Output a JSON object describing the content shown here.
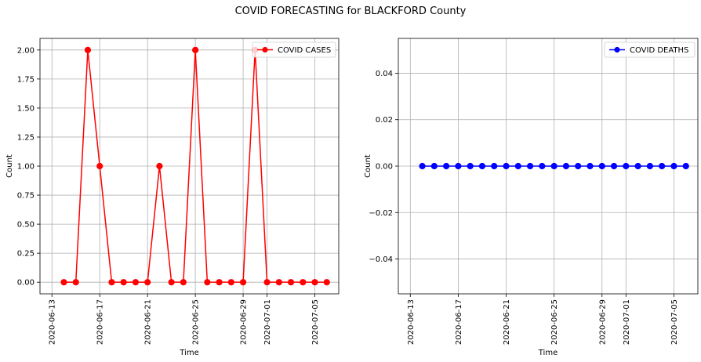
{
  "suptitle": "COVID FORECASTING for BLACKFORD County",
  "chart_data": [
    {
      "type": "line",
      "xlabel": "Time",
      "ylabel": "Count",
      "x": [
        "2020-06-14",
        "2020-06-15",
        "2020-06-16",
        "2020-06-17",
        "2020-06-18",
        "2020-06-19",
        "2020-06-20",
        "2020-06-21",
        "2020-06-22",
        "2020-06-23",
        "2020-06-24",
        "2020-06-25",
        "2020-06-26",
        "2020-06-27",
        "2020-06-28",
        "2020-06-29",
        "2020-06-30",
        "2020-07-01",
        "2020-07-02",
        "2020-07-03",
        "2020-07-04",
        "2020-07-05",
        "2020-07-06"
      ],
      "xticks": [
        "2020-06-13",
        "2020-06-17",
        "2020-06-21",
        "2020-06-25",
        "2020-06-29",
        "2020-07-01",
        "2020-07-05"
      ],
      "xlim": [
        "2020-06-12",
        "2020-07-07"
      ],
      "ylim": [
        -0.1,
        2.1
      ],
      "yticks": [
        0.0,
        0.25,
        0.5,
        0.75,
        1.0,
        1.25,
        1.5,
        1.75,
        2.0
      ],
      "ytick_labels": [
        "0.00",
        "0.25",
        "0.50",
        "0.75",
        "1.00",
        "1.25",
        "1.50",
        "1.75",
        "2.00"
      ],
      "grid": true,
      "legend_position": "top-right",
      "series": [
        {
          "name": "COVID CASES",
          "color": "#ff0000",
          "values": [
            0,
            0,
            2,
            1,
            0,
            0,
            0,
            0,
            1,
            0,
            0,
            2,
            0,
            0,
            0,
            0,
            2,
            0,
            0,
            0,
            0,
            0,
            0
          ]
        }
      ]
    },
    {
      "type": "line",
      "xlabel": "Time",
      "ylabel": "Count",
      "x": [
        "2020-06-14",
        "2020-06-15",
        "2020-06-16",
        "2020-06-17",
        "2020-06-18",
        "2020-06-19",
        "2020-06-20",
        "2020-06-21",
        "2020-06-22",
        "2020-06-23",
        "2020-06-24",
        "2020-06-25",
        "2020-06-26",
        "2020-06-27",
        "2020-06-28",
        "2020-06-29",
        "2020-06-30",
        "2020-07-01",
        "2020-07-02",
        "2020-07-03",
        "2020-07-04",
        "2020-07-05",
        "2020-07-06"
      ],
      "xticks": [
        "2020-06-13",
        "2020-06-17",
        "2020-06-21",
        "2020-06-25",
        "2020-06-29",
        "2020-07-01",
        "2020-07-05"
      ],
      "xlim": [
        "2020-06-12",
        "2020-07-07"
      ],
      "ylim": [
        -0.055,
        0.055
      ],
      "yticks": [
        -0.04,
        -0.02,
        0.0,
        0.02,
        0.04
      ],
      "ytick_labels": [
        "−0.04",
        "−0.02",
        "0.00",
        "0.02",
        "0.04"
      ],
      "grid": true,
      "legend_position": "top-right",
      "series": [
        {
          "name": "COVID DEATHS",
          "color": "#0000ff",
          "values": [
            0,
            0,
            0,
            0,
            0,
            0,
            0,
            0,
            0,
            0,
            0,
            0,
            0,
            0,
            0,
            0,
            0,
            0,
            0,
            0,
            0,
            0,
            0
          ]
        }
      ]
    }
  ]
}
